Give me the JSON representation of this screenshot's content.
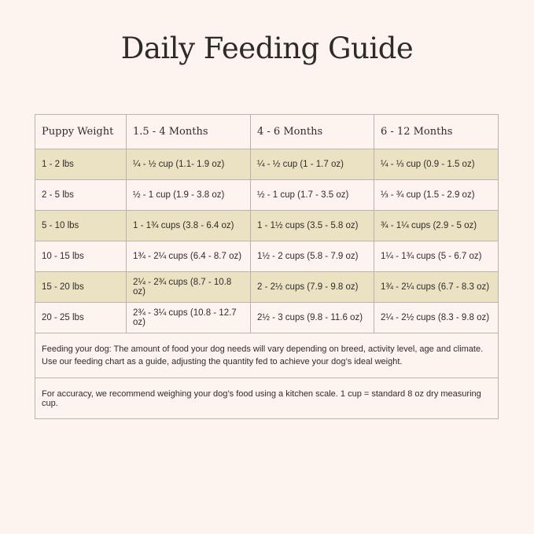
{
  "title": "Daily Feeding Guide",
  "table": {
    "headers": [
      "Puppy Weight",
      "1.5 - 4 Months",
      "4 - 6 Months",
      "6 - 12 Months"
    ],
    "rows": [
      [
        "1 - 2 lbs",
        "¼ - ½ cup (1.1- 1.9 oz)",
        "¼ - ½ cup (1 - 1.7 oz)",
        "¼ - ⅓ cup (0.9 - 1.5 oz)"
      ],
      [
        "2 - 5 lbs",
        "½ - 1 cup (1.9 - 3.8 oz)",
        "½ - 1 cup (1.7 - 3.5 oz)",
        "⅓ - ¾ cup (1.5 - 2.9 oz)"
      ],
      [
        "5 - 10 lbs",
        "1 - 1¾ cups (3.8 - 6.4 oz)",
        "1 - 1½ cups (3.5 - 5.8 oz)",
        "¾ - 1¼ cups (2.9 - 5 oz)"
      ],
      [
        "10 - 15 lbs",
        "1¾ - 2¼ cups (6.4 - 8.7 oz)",
        "1½ - 2 cups (5.8 - 7.9 oz)",
        "1¼ - 1¾ cups (5 - 6.7 oz)"
      ],
      [
        "15 - 20 lbs",
        "2¼ - 2¾ cups (8.7 - 10.8 oz)",
        "2 - 2½ cups (7.9 - 9.8 oz)",
        "1¾ - 2¼ cups (6.7 - 8.3 oz)"
      ],
      [
        "20 - 25 lbs",
        "2¾ - 3¼ cups (10.8 - 12.7 oz)",
        "2½ - 3 cups (9.8 - 11.6 oz)",
        "2¼ - 2½ cups (8.3 - 9.8 oz)"
      ]
    ],
    "shade_color": "#ebe2c4"
  },
  "notes": [
    "Feeding your dog: The amount of food your dog needs will vary depending on breed, activity level, age and climate. Use our feeding chart as a guide, adjusting the quantity fed to achieve your dog’s ideal weight.",
    "For accuracy, we recommend weighing your dog’s food using a kitchen scale. 1 cup = standard 8 oz dry measuring cup."
  ],
  "colors": {
    "background": "#fdf3ef",
    "text": "#2f2d2a",
    "border": "#b8b3ae"
  }
}
